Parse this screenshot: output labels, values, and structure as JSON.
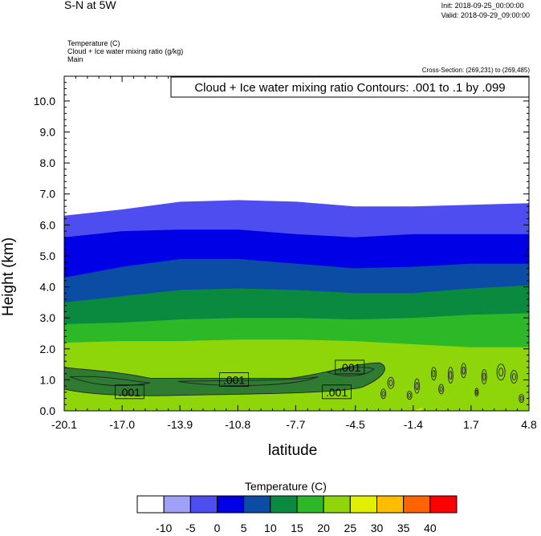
{
  "header": {
    "title": "S-N at 5W",
    "init": "Init: 2018-09-25_00:00:00",
    "valid": "Valid: 2018-09-29_09:00:00",
    "field1": "Temperature   (C)",
    "field2": "Cloud + Ice water mixing ratio   (g/kg)",
    "field3": "Main",
    "cross_section": "Cross-Section: (269,231) to (269,485)"
  },
  "chart_data": {
    "type": "filled-contour cross-section",
    "xlabel": "latitude",
    "ylabel": "Height (km)",
    "xlim": [
      -20.1,
      4.8
    ],
    "ylim": [
      0.0,
      10.8
    ],
    "x_ticks": [
      "-20.1",
      "-17.0",
      "-13.9",
      "-10.8",
      "-7.7",
      "-4.5",
      "-1.4",
      "1.7",
      "4.8"
    ],
    "y_ticks": [
      "0.0",
      "1.0",
      "2.0",
      "3.0",
      "4.0",
      "5.0",
      "6.0",
      "7.0",
      "8.0",
      "9.0",
      "10.0"
    ],
    "contour_title": "Cloud + Ice water mixing ratio Contours: .001 to .1 by .099",
    "contour_labels": [
      {
        "text": ".001",
        "x": -16.6,
        "y": 0.6
      },
      {
        "text": ".001",
        "x": -11.0,
        "y": 1.0
      },
      {
        "text": ".001",
        "x": -5.5,
        "y": 0.6
      },
      {
        "text": ".001",
        "x": -4.8,
        "y": 1.4
      }
    ],
    "temperature_levels": [
      -10,
      -5,
      0,
      5,
      10,
      15,
      20,
      25,
      30,
      35,
      40
    ],
    "temperature_colors": [
      "#ffffff",
      "#a0a0f8",
      "#4d4df0",
      "#0000e6",
      "#0b4ca4",
      "#0a8a3e",
      "#2db828",
      "#8ed60a",
      "#e1f000",
      "#ffbc00",
      "#ff6400",
      "#ff0000"
    ],
    "isotherm_heights_km": [
      {
        "level": -5,
        "heights": [
          6.3,
          6.5,
          6.75,
          6.8,
          6.75,
          6.6,
          6.6,
          6.65,
          6.7
        ]
      },
      {
        "level": 0,
        "heights": [
          5.6,
          5.8,
          5.85,
          5.85,
          5.7,
          5.6,
          5.7,
          5.7,
          5.7
        ]
      },
      {
        "level": 5,
        "heights": [
          4.3,
          4.65,
          4.9,
          4.9,
          4.75,
          4.6,
          4.65,
          4.75,
          4.75
        ]
      },
      {
        "level": 10,
        "heights": [
          3.5,
          3.7,
          3.9,
          3.95,
          3.9,
          3.8,
          3.8,
          3.95,
          4.05
        ]
      },
      {
        "level": 15,
        "heights": [
          2.8,
          2.85,
          2.95,
          3.0,
          3.0,
          2.95,
          3.0,
          3.1,
          3.15
        ]
      },
      {
        "level": 20,
        "heights": [
          2.2,
          2.25,
          2.25,
          2.3,
          2.3,
          2.25,
          2.15,
          2.05,
          2.05
        ]
      },
      {
        "level": 25,
        "heights": [
          0.0,
          0.0,
          0.0,
          0.0,
          0.0,
          0.0,
          0.0,
          0.6,
          0.65
        ]
      }
    ],
    "labelbar": {
      "title": "Temperature  (C)",
      "labels": [
        "-10",
        "-5",
        "0",
        "5",
        "10",
        "15",
        "20",
        "25",
        "30",
        "35",
        "40"
      ]
    }
  }
}
